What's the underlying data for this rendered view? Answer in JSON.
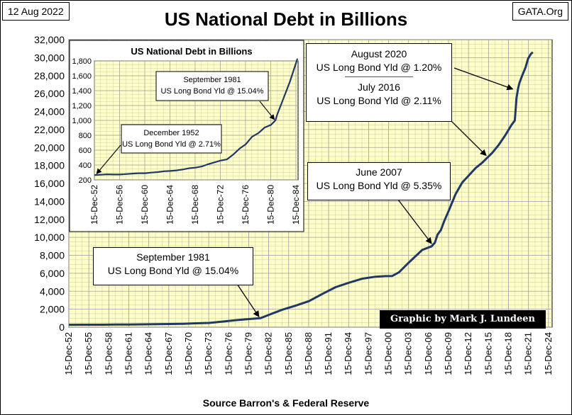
{
  "header": {
    "date": "12 Aug 2022",
    "title": "US National Debt in Billions",
    "source_site": "GATA.Org"
  },
  "footer": {
    "xlabel": "Source Barron's & Federal Reserve"
  },
  "credit": "Graphic by Mark J. Lundeen",
  "annotations": {
    "aug2020": {
      "line1": "August 2020",
      "line2": "US Long Bond Yld @ 1.20%"
    },
    "jul2016": {
      "line1": "July 2016",
      "line2": "US Long Bond Yld @ 2.11%"
    },
    "jun2007": {
      "line1": "June 2007",
      "line2": "US Long Bond Yld @ 5.35%"
    },
    "sep1981": {
      "line1": "September 1981",
      "line2": "US Long Bond Yld @ 15.04%"
    }
  },
  "inset": {
    "title": "US National Debt in Billions",
    "annotations": {
      "sep1981": {
        "line1": "September 1981",
        "line2": "US Long Bond Yld @ 15.04%"
      },
      "dec1952": {
        "line1": "December 1952",
        "line2": "US Long Bond Yld @ 2.71%"
      }
    }
  },
  "colors": {
    "line": "#1f3864",
    "plot_bg": "#ffffc8",
    "grid": "#a0a0a0"
  },
  "chart_data": [
    {
      "type": "line",
      "title": "US National Debt in Billions",
      "xlabel": "Source Barron's & Federal Reserve",
      "ylabel": "",
      "ylim": [
        0,
        32000
      ],
      "yticks": [
        0,
        2000,
        4000,
        6000,
        8000,
        10000,
        12000,
        14000,
        16000,
        18000,
        20000,
        22000,
        24000,
        26000,
        28000,
        30000,
        32000
      ],
      "xlim": [
        1952.95,
        2025.5
      ],
      "xticks": [
        "15-Dec-52",
        "15-Dec-55",
        "15-Dec-58",
        "15-Dec-61",
        "15-Dec-64",
        "15-Dec-67",
        "15-Dec-70",
        "15-Dec-73",
        "15-Dec-76",
        "15-Dec-79",
        "15-Dec-82",
        "15-Dec-85",
        "15-Dec-88",
        "15-Dec-91",
        "15-Dec-94",
        "15-Dec-97",
        "15-Dec-00",
        "15-Dec-03",
        "15-Dec-06",
        "15-Dec-09",
        "15-Dec-12",
        "15-Dec-15",
        "15-Dec-18",
        "15-Dec-21",
        "15-Dec-24"
      ],
      "grid": true,
      "x": [
        1952.95,
        1955,
        1958,
        1960,
        1962,
        1964,
        1966,
        1968,
        1970,
        1972,
        1974,
        1976,
        1978,
        1980,
        1981.7,
        1983,
        1985,
        1987,
        1989,
        1991,
        1993,
        1995,
        1997,
        1999,
        2000.5,
        2001.5,
        2002.5,
        2004,
        2006,
        2007.4,
        2007.9,
        2008.3,
        2008.8,
        2009.3,
        2010,
        2011,
        2012,
        2013,
        2014,
        2015,
        2016.5,
        2017.5,
        2018.5,
        2019.4,
        2019.9,
        2020.15,
        2020.4,
        2020.6,
        2021,
        2021.5,
        2021.9,
        2022.3,
        2022.6
      ],
      "values": [
        265,
        272,
        278,
        288,
        298,
        316,
        328,
        356,
        380,
        435,
        475,
        620,
        780,
        905,
        1000,
        1380,
        1950,
        2400,
        2900,
        3700,
        4450,
        4950,
        5400,
        5620,
        5680,
        5700,
        6100,
        7200,
        8600,
        9000,
        9400,
        10300,
        10800,
        11800,
        13000,
        14800,
        16100,
        16900,
        17700,
        18300,
        19400,
        20300,
        21400,
        22500,
        23000,
        25500,
        26600,
        27200,
        28000,
        28900,
        29900,
        30400,
        30600
      ]
    },
    {
      "type": "line",
      "title": "US National Debt in Billions",
      "ylim": [
        200,
        1800
      ],
      "yticks": [
        200,
        400,
        600,
        800,
        1000,
        1200,
        1400,
        1600,
        1800
      ],
      "xlim": [
        1952.95,
        1985.3
      ],
      "xticks": [
        "15-Dec-52",
        "15-Dec-56",
        "15-Dec-60",
        "15-Dec-64",
        "15-Dec-68",
        "15-Dec-72",
        "15-Dec-76",
        "15-Dec-80",
        "15-Dec-84"
      ],
      "grid": true,
      "x": [
        1952.95,
        1954,
        1955,
        1956,
        1957,
        1958,
        1959,
        1960,
        1961,
        1962,
        1963,
        1964,
        1965,
        1966,
        1967,
        1968,
        1969,
        1970,
        1971,
        1972,
        1973,
        1974,
        1975,
        1976,
        1977,
        1978,
        1979,
        1980,
        1981,
        1981.7,
        1982,
        1983,
        1984,
        1985.2
      ],
      "values": [
        265,
        270,
        275,
        272,
        272,
        278,
        285,
        290,
        290,
        298,
        305,
        316,
        320,
        328,
        340,
        356,
        365,
        380,
        410,
        435,
        460,
        475,
        540,
        620,
        680,
        780,
        830,
        905,
        940,
        1000,
        1080,
        1300,
        1520,
        1830
      ]
    }
  ]
}
